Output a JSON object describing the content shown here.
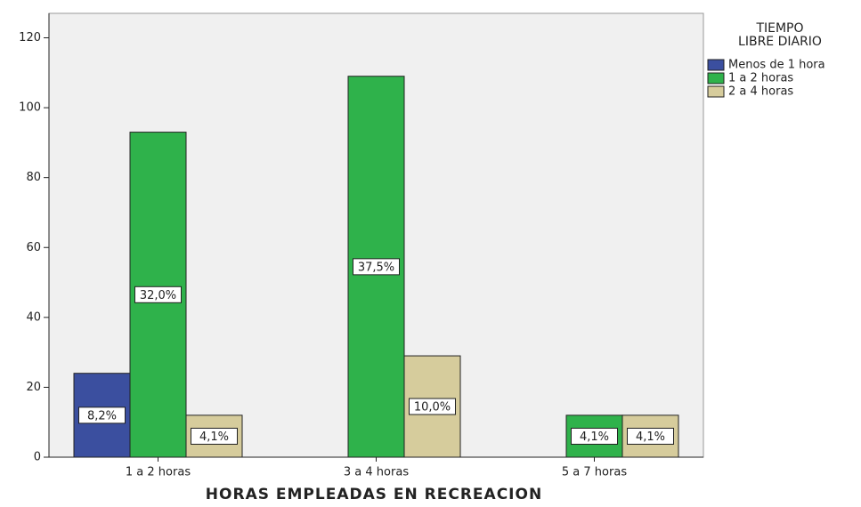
{
  "chart_data": {
    "type": "bar",
    "x_label": "HORAS EMPLEADAS EN RECREACION",
    "legend_title": [
      "TIEMPO",
      "LIBRE DIARIO"
    ],
    "legend_position": "right",
    "categories": [
      "1 a 2 horas",
      "3 a 4 horas",
      "5 a 7 horas"
    ],
    "series": [
      {
        "name": "Menos de 1 hora",
        "color": "#3b4f9f",
        "values": [
          24,
          null,
          null
        ],
        "percent_labels": [
          "8,2%",
          null,
          null
        ]
      },
      {
        "name": "1 a 2 horas",
        "color": "#2fb24b",
        "values": [
          93,
          109,
          12
        ],
        "percent_labels": [
          "32,0%",
          "37,5%",
          "4,1%"
        ]
      },
      {
        "name": "2 a 4 horas",
        "color": "#d6cc9c",
        "values": [
          12,
          29,
          12
        ],
        "percent_labels": [
          "4,1%",
          "10,0%",
          "4,1%"
        ]
      }
    ],
    "ylim": [
      0,
      127
    ],
    "yticks": [
      0,
      20,
      40,
      60,
      80,
      100,
      120
    ],
    "grid": false
  }
}
